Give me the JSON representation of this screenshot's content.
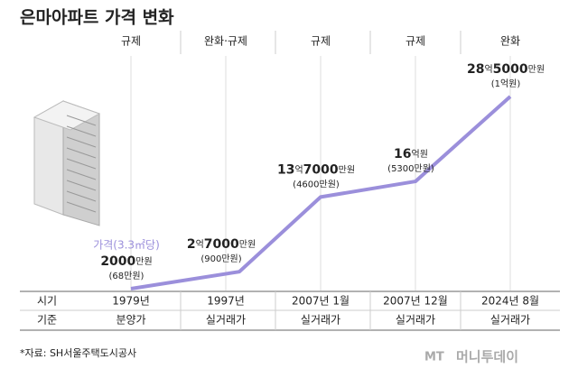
{
  "chart_data": {
    "type": "line",
    "title": "은마아파트 가격 변화",
    "policy": [
      "규제",
      "완화·규제",
      "규제",
      "규제",
      "완화"
    ],
    "categories": [
      "1979년",
      "1997년",
      "2007년 1월",
      "2007년 12월",
      "2024년 8월"
    ],
    "basis": [
      "분양가",
      "실거래가",
      "실거래가",
      "실거래가",
      "실거래가"
    ],
    "row_labels": [
      "시기",
      "기준"
    ],
    "values": [
      2000,
      27000,
      137000,
      160000,
      285000
    ],
    "value_labels": [
      "2000만원",
      "2억7000만원",
      "13억7000만원",
      "16억원",
      "28억5000만원"
    ],
    "sub_labels": [
      "(68만원)",
      "(900만원)",
      "(4600만원)",
      "(5300만원)",
      "(1억원)"
    ],
    "annotation": "가격(3.3㎡당)",
    "color": "#9b8fdb",
    "source": "*자료: SH서울주택도시공사",
    "logo": "MT",
    "brand": "머니투데이"
  }
}
